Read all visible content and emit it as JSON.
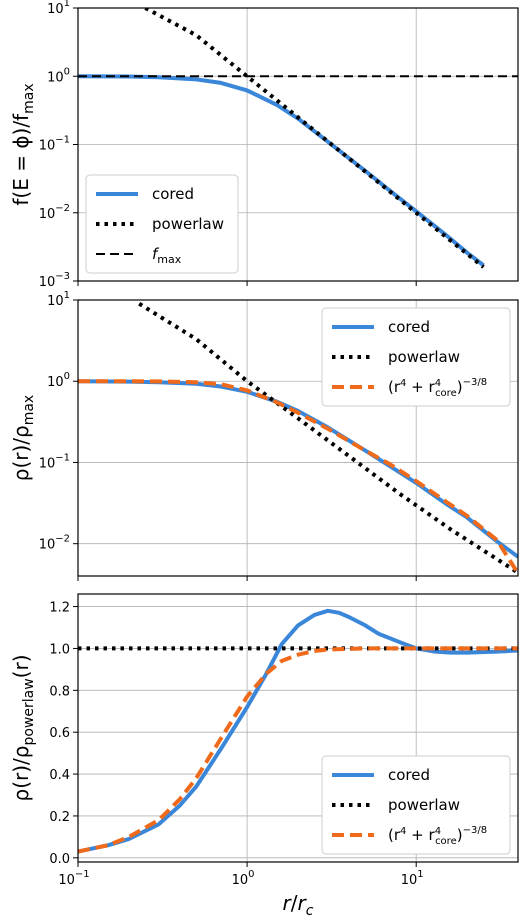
{
  "colors": {
    "cored": "#3a86d8",
    "powerlaw": "#000000",
    "fmax": "#000000",
    "fit": "#ef6a1a"
  },
  "shared_x": {
    "label_html": "r/r_c",
    "label_parts": [
      "r",
      "/",
      "r",
      "c"
    ],
    "scale": "log",
    "xlim": [
      0.1,
      40
    ],
    "ticks": [
      {
        "value": 0.1,
        "base": "10",
        "exp": "−1"
      },
      {
        "value": 1,
        "base": "10",
        "exp": "0"
      },
      {
        "value": 10,
        "base": "10",
        "exp": "1"
      }
    ]
  },
  "chart_data": [
    {
      "type": "line",
      "ylabel_parts": [
        "f(E = ϕ)/f",
        "max"
      ],
      "yscale": "log",
      "ylim": [
        0.001,
        10
      ],
      "yticks": [
        {
          "value": 10,
          "base": "10",
          "exp": "1"
        },
        {
          "value": 1,
          "base": "10",
          "exp": "0"
        },
        {
          "value": 0.1,
          "base": "10",
          "exp": "−1"
        },
        {
          "value": 0.01,
          "base": "10",
          "exp": "−2"
        },
        {
          "value": 0.001,
          "base": "10",
          "exp": "−3"
        }
      ],
      "grid": true,
      "legend_position": "lower-left",
      "legend": [
        {
          "key": "cored",
          "label": "cored",
          "style": "solid"
        },
        {
          "key": "powerlaw",
          "label": "powerlaw",
          "style": "dotted"
        },
        {
          "key": "fmax",
          "label_main": "f",
          "label_sub": "max",
          "style": "dashed"
        }
      ],
      "series": [
        {
          "name": "cored",
          "style": "solid",
          "x": [
            0.1,
            0.2,
            0.3,
            0.5,
            0.7,
            1.0,
            1.5,
            2,
            3,
            5,
            7,
            10,
            15,
            20,
            25
          ],
          "y": [
            1.0,
            0.99,
            0.97,
            0.9,
            0.8,
            0.62,
            0.38,
            0.24,
            0.11,
            0.041,
            0.021,
            0.0105,
            0.0047,
            0.0026,
            0.0017
          ]
        },
        {
          "name": "powerlaw",
          "style": "dotted",
          "x": [
            0.25,
            0.5,
            1,
            2,
            4,
            8,
            16,
            25
          ],
          "y": [
            10,
            4.0,
            1.0,
            0.25,
            0.0625,
            0.0156,
            0.0039,
            0.0016
          ]
        },
        {
          "name": "fmax",
          "style": "dashed",
          "x": [
            0.1,
            40
          ],
          "y": [
            1,
            1
          ]
        }
      ]
    },
    {
      "type": "line",
      "ylabel_parts": [
        "ρ(r)/ρ",
        "max"
      ],
      "yscale": "log",
      "ylim": [
        0.004,
        10
      ],
      "yticks": [
        {
          "value": 10,
          "base": "10",
          "exp": "1"
        },
        {
          "value": 1,
          "base": "10",
          "exp": "0"
        },
        {
          "value": 0.1,
          "base": "10",
          "exp": "−1"
        },
        {
          "value": 0.01,
          "base": "10",
          "exp": "−2"
        }
      ],
      "grid": true,
      "legend_position": "top-right",
      "legend": [
        {
          "key": "cored",
          "label": "cored",
          "style": "solid"
        },
        {
          "key": "powerlaw",
          "label": "powerlaw",
          "style": "dotted"
        },
        {
          "key": "fit",
          "label_parts": [
            "(r",
            "4",
            " + r",
            "4",
            "core",
            ")",
            "−3/8"
          ],
          "style": "dashed"
        }
      ],
      "series": [
        {
          "name": "cored",
          "style": "solid",
          "x": [
            0.1,
            0.2,
            0.3,
            0.5,
            0.7,
            1.0,
            1.5,
            2,
            3,
            5,
            7,
            10,
            15,
            20,
            30,
            40
          ],
          "y": [
            1.0,
            0.99,
            0.97,
            0.93,
            0.86,
            0.74,
            0.56,
            0.43,
            0.27,
            0.14,
            0.09,
            0.056,
            0.031,
            0.021,
            0.0107,
            0.0069
          ]
        },
        {
          "name": "powerlaw",
          "style": "dotted",
          "x": [
            0.23,
            0.5,
            1,
            2,
            4,
            8,
            16,
            40
          ],
          "y": [
            9,
            3.3,
            1.0,
            0.35,
            0.12,
            0.041,
            0.015,
            0.0044
          ]
        },
        {
          "name": "(r^4 + r_core^4)^-3/8",
          "style": "dashed",
          "x": [
            0.1,
            0.2,
            0.3,
            0.5,
            0.7,
            1.0,
            1.5,
            2,
            3,
            5,
            7,
            10,
            15,
            20,
            30,
            40
          ],
          "y": [
            1.0,
            0.999,
            0.995,
            0.97,
            0.92,
            0.77,
            0.55,
            0.41,
            0.26,
            0.14,
            0.095,
            0.059,
            0.033,
            0.022,
            0.0111,
            0.0043
          ]
        }
      ]
    },
    {
      "type": "line",
      "ylabel_parts": [
        "ρ(r)/ρ",
        "powerlaw",
        "(r)"
      ],
      "yscale": "linear",
      "ylim": [
        -0.02,
        1.26
      ],
      "yticks": [
        {
          "value": 0.0,
          "label": "0.0"
        },
        {
          "value": 0.2,
          "label": "0.2"
        },
        {
          "value": 0.4,
          "label": "0.4"
        },
        {
          "value": 0.6,
          "label": "0.6"
        },
        {
          "value": 0.8,
          "label": "0.8"
        },
        {
          "value": 1.0,
          "label": "1.0"
        },
        {
          "value": 1.2,
          "label": "1.2"
        }
      ],
      "grid": true,
      "legend_position": "bottom-right",
      "legend": [
        {
          "key": "cored",
          "label": "cored",
          "style": "solid"
        },
        {
          "key": "powerlaw",
          "label": "powerlaw",
          "style": "dotted"
        },
        {
          "key": "fit",
          "label_parts": [
            "(r",
            "4",
            " + r",
            "4",
            "core",
            ")",
            "−3/8"
          ],
          "style": "dashed"
        }
      ],
      "series": [
        {
          "name": "cored",
          "style": "solid",
          "x": [
            0.1,
            0.15,
            0.2,
            0.3,
            0.4,
            0.5,
            0.7,
            1.0,
            1.3,
            1.6,
            2,
            2.5,
            3,
            3.5,
            4,
            5,
            6,
            8,
            10,
            13,
            16,
            20,
            30,
            40
          ],
          "y": [
            0.03,
            0.06,
            0.09,
            0.16,
            0.25,
            0.34,
            0.52,
            0.72,
            0.88,
            1.02,
            1.11,
            1.16,
            1.18,
            1.17,
            1.15,
            1.11,
            1.07,
            1.03,
            1.0,
            0.985,
            0.98,
            0.98,
            0.985,
            0.99
          ]
        },
        {
          "name": "powerlaw",
          "style": "dotted",
          "x": [
            0.1,
            40
          ],
          "y": [
            1.0,
            1.0
          ]
        },
        {
          "name": "(r^4 + r_core^4)^-3/8",
          "style": "dashed",
          "x": [
            0.1,
            0.15,
            0.2,
            0.3,
            0.4,
            0.5,
            0.7,
            1.0,
            1.3,
            1.6,
            2,
            2.5,
            3,
            4,
            5,
            7,
            10,
            20,
            40
          ],
          "y": [
            0.03,
            0.06,
            0.1,
            0.18,
            0.28,
            0.38,
            0.57,
            0.77,
            0.88,
            0.94,
            0.97,
            0.988,
            0.995,
            0.998,
            1.0,
            1.0,
            1.0,
            1.0,
            1.0
          ]
        }
      ]
    }
  ]
}
